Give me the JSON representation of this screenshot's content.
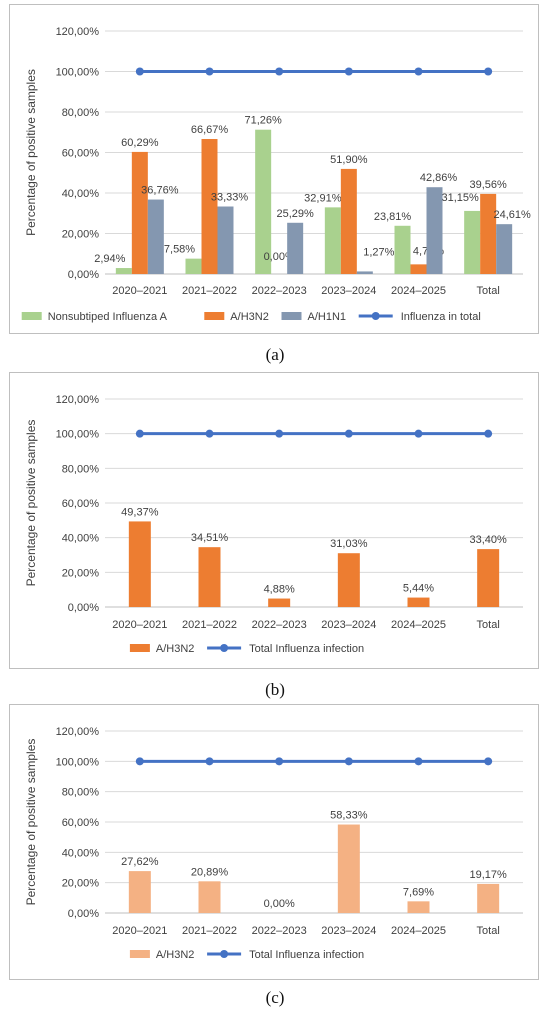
{
  "colors": {
    "nonsub": "#a9d18e",
    "h3n2": "#ed7d31",
    "h3n2_light": "#f4b183",
    "h1n1": "#8497b0",
    "line": "#4472c4",
    "grid": "#d9d9d9",
    "frame": "#bfbfbf",
    "text": "#404040"
  },
  "chart_data": [
    {
      "type": "bar",
      "caption": "(a)",
      "ylabel": "Percentage of positive samples",
      "ylim": [
        0,
        120
      ],
      "yticks": [
        "0,00%",
        "20,00%",
        "40,00%",
        "60,00%",
        "80,00%",
        "100,00%",
        "120,00%"
      ],
      "categories": [
        "2020–2021",
        "2021–2022",
        "2022–2023",
        "2023–2024",
        "2024–2025",
        "Total"
      ],
      "series": [
        {
          "name": "Nonsubtiped Influenza A",
          "color": "nonsub",
          "values": [
            2.94,
            7.58,
            71.26,
            32.91,
            23.81,
            31.15
          ],
          "labels": [
            "2,94%",
            "7,58%",
            "71,26%",
            "32,91%",
            "23,81%",
            "31,15%"
          ]
        },
        {
          "name": "A/H3N2",
          "color": "h3n2",
          "values": [
            60.29,
            66.67,
            0.0,
            51.9,
            4.76,
            39.56
          ],
          "labels": [
            "60,29%",
            "66,67%",
            "0,00%",
            "51,90%",
            "4,76%",
            "39,56%"
          ]
        },
        {
          "name": "A/H1N1",
          "color": "h1n1",
          "values": [
            36.76,
            33.33,
            25.29,
            1.27,
            42.86,
            24.61
          ],
          "labels": [
            "36,76%",
            "33,33%",
            "25,29%",
            "1,27%",
            "42,86%",
            "24,61%"
          ]
        }
      ],
      "line": {
        "name": "Influenza in total",
        "color": "line",
        "values": [
          100,
          100,
          100,
          100,
          100,
          100
        ]
      }
    },
    {
      "type": "bar",
      "caption": "(b)",
      "ylabel": "Percentage of positive samples",
      "ylim": [
        0,
        120
      ],
      "yticks": [
        "0,00%",
        "20,00%",
        "40,00%",
        "60,00%",
        "80,00%",
        "100,00%",
        "120,00%"
      ],
      "categories": [
        "2020–2021",
        "2021–2022",
        "2022–2023",
        "2023–2024",
        "2024–2025",
        "Total"
      ],
      "series": [
        {
          "name": "A/H3N2",
          "color": "h3n2",
          "values": [
            49.37,
            34.51,
            4.88,
            31.03,
            5.44,
            33.4
          ],
          "labels": [
            "49,37%",
            "34,51%",
            "4,88%",
            "31,03%",
            "5,44%",
            "33,40%"
          ]
        }
      ],
      "line": {
        "name": "Total Influenza infection",
        "color": "line",
        "values": [
          100,
          100,
          100,
          100,
          100,
          100
        ]
      }
    },
    {
      "type": "bar",
      "caption": "(c)",
      "ylabel": "Percentage of positive samples",
      "ylim": [
        0,
        120
      ],
      "yticks": [
        "0,00%",
        "20,00%",
        "40,00%",
        "60,00%",
        "80,00%",
        "100,00%",
        "120,00%"
      ],
      "categories": [
        "2020–2021",
        "2021–2022",
        "2022–2023",
        "2023–2024",
        "2024–2025",
        "Total"
      ],
      "series": [
        {
          "name": "A/H3N2",
          "color": "h3n2_light",
          "values": [
            27.62,
            20.89,
            0.0,
            58.33,
            7.69,
            19.17
          ],
          "labels": [
            "27,62%",
            "20,89%",
            "0,00%",
            "58,33%",
            "7,69%",
            "19,17%"
          ]
        }
      ],
      "line": {
        "name": "Total Influenza infection",
        "color": "line",
        "values": [
          100,
          100,
          100,
          100,
          100,
          100
        ]
      }
    }
  ]
}
